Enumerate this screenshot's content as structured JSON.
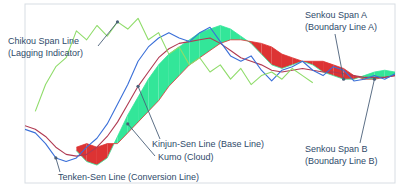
{
  "chart_data": {
    "type": "line",
    "xlim": [
      0,
      36
    ],
    "ylim": [
      0,
      100
    ],
    "tick_labels": false,
    "grid": false,
    "x": [
      0,
      1,
      2,
      3,
      4,
      5,
      6,
      7,
      8,
      9,
      10,
      11,
      12,
      13,
      14,
      15,
      16,
      17,
      18,
      19,
      20,
      21,
      22,
      23,
      24,
      25,
      26,
      27,
      28,
      29,
      30,
      31,
      32,
      33,
      34,
      35,
      36
    ],
    "series": [
      {
        "color": "#3a6fd8",
        "values": [
          30,
          28,
          22,
          14,
          12,
          14,
          20,
          25,
          33,
          44,
          55,
          68,
          76,
          81,
          84,
          81,
          79,
          84,
          87,
          79,
          71,
          68,
          71,
          63,
          57,
          63,
          65,
          68,
          63,
          60,
          65,
          63,
          57,
          58,
          60,
          58,
          61
        ]
      },
      {
        "color": "#b03a52",
        "values": [
          32,
          30,
          26,
          20,
          16,
          15,
          16,
          20,
          26,
          34,
          44,
          54,
          62,
          70,
          75,
          78,
          79,
          80,
          81,
          78,
          74,
          70,
          68,
          66,
          63,
          62,
          63,
          64,
          63,
          62,
          62,
          61,
          60,
          59,
          59,
          59,
          60
        ]
      },
      {
        "color": "#8fdc6a",
        "values": [
          null,
          40,
          55,
          65,
          70,
          85,
          80,
          88,
          82,
          90,
          86,
          92,
          80,
          84,
          72,
          76,
          66,
          70,
          62,
          66,
          58,
          64,
          55,
          60,
          62,
          58,
          64,
          60,
          56,
          null,
          null,
          null,
          null,
          null,
          null,
          null,
          null
        ]
      },
      {
        "color": "#33e699",
        "values": [
          null,
          null,
          null,
          null,
          null,
          18,
          12,
          10,
          14,
          26,
          38,
          48,
          58,
          66,
          72,
          76,
          80,
          84,
          86,
          88,
          86,
          82,
          78,
          72,
          66,
          64,
          66,
          68,
          66,
          62,
          60,
          58,
          58,
          60,
          62,
          63,
          62
        ]
      },
      {
        "color": "#dd3333",
        "values": [
          null,
          null,
          null,
          null,
          null,
          20,
          22,
          20,
          22,
          22,
          28,
          34,
          40,
          46,
          54,
          60,
          66,
          70,
          74,
          78,
          80,
          80,
          79,
          78,
          76,
          72,
          70,
          68,
          68,
          68,
          66,
          64,
          60,
          58,
          58,
          59,
          60
        ]
      }
    ],
    "annotations": [
      {
        "text": [
          "Chikou Span Line",
          "(Lagging Indicator)"
        ]
      },
      {
        "text": [
          "Senkou Span A",
          "(Boundary Line A)"
        ]
      },
      {
        "text": [
          "Kinjun-Sen Line (Base Line)"
        ]
      },
      {
        "text": [
          "Kumo (Cloud)"
        ]
      },
      {
        "text": [
          "Tenken-Sen Line (Conversion Line)"
        ]
      },
      {
        "text": [
          "Senkou Span B",
          "(Boundary Line B)"
        ]
      }
    ]
  }
}
